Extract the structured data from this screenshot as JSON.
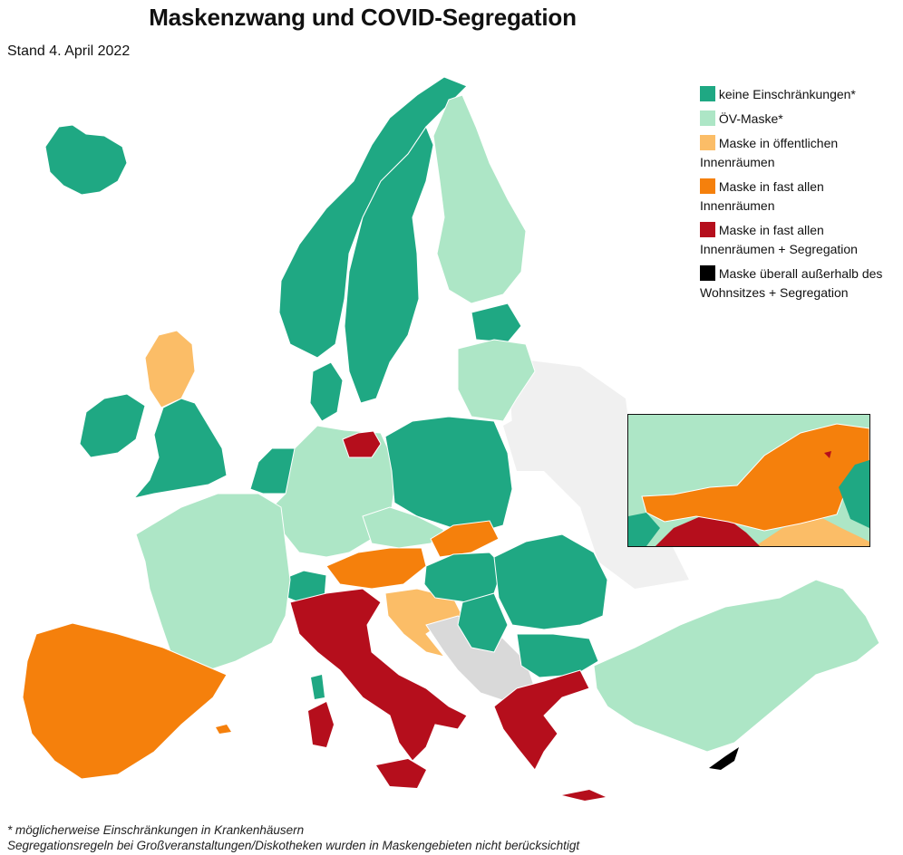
{
  "title": "Maskenzwang und COVID-Segregation",
  "subtitle": "Stand 4. April 2022",
  "colors": {
    "none": "#1fa883",
    "transit": "#ade6c6",
    "public_indoor": "#fbbd67",
    "most_indoor": "#f5800c",
    "most_indoor_seg": "#b50e1c",
    "everywhere_seg": "#000000",
    "no_data": "#d9d9d9",
    "outside": "#f0f0f0"
  },
  "legend": [
    {
      "key": "none",
      "label": "keine Einschränkungen*",
      "color": "#1fa883"
    },
    {
      "key": "transit",
      "label": "ÖV-Maske*",
      "color": "#ade6c6"
    },
    {
      "key": "public_indoor",
      "label": "Maske in öffentlichen Innenräumen",
      "color": "#fbbd67"
    },
    {
      "key": "most_indoor",
      "label": "Maske in fast allen Innenräumen",
      "color": "#f5800c"
    },
    {
      "key": "most_indoor_seg",
      "label": "Maske in fast allen Innenräumen + Segregation",
      "color": "#b50e1c"
    },
    {
      "key": "everywhere_seg",
      "label": "Maske überall außerhalb des Wohnsitzes + Segregation",
      "color": "#000000"
    }
  ],
  "footnotes": [
    "* möglicherweise Einschränkungen in Krankenhäusern",
    "Segregationsregeln bei Großveranstaltungen/Diskotheken wurden in Maskengebieten nicht berücksichtigt"
  ]
}
